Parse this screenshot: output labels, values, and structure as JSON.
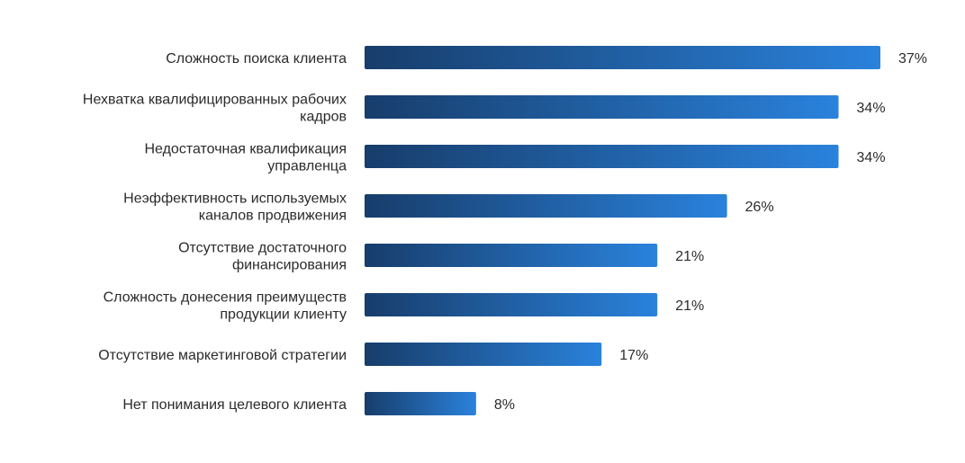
{
  "chart_data": {
    "type": "bar",
    "orientation": "horizontal",
    "categories": [
      [
        "Сложность поиска клиента"
      ],
      [
        "Нехватка квалифицированных рабочих",
        "кадров"
      ],
      [
        "Недостаточная квалификация",
        "управленца"
      ],
      [
        "Неэффективность используемых",
        "каналов продвижения"
      ],
      [
        "Отсутствие достаточного",
        "финансирования"
      ],
      [
        "Сложность донесения преимуществ",
        "продукции клиенту"
      ],
      [
        "Отсутствие маркетинговой стратегии"
      ],
      [
        "Нет понимания целевого клиента"
      ]
    ],
    "values": [
      37,
      34,
      34,
      26,
      21,
      21,
      17,
      8
    ],
    "value_labels": [
      "37%",
      "34%",
      "34%",
      "26%",
      "21%",
      "21%",
      "17%",
      "8%"
    ],
    "unit": "%",
    "xlim": [
      0,
      37
    ],
    "grid": false,
    "legend": "none",
    "colors": {
      "bar_start": "#173d6b",
      "bar_end": "#2a82dc",
      "text": "#2b2b2b"
    }
  }
}
